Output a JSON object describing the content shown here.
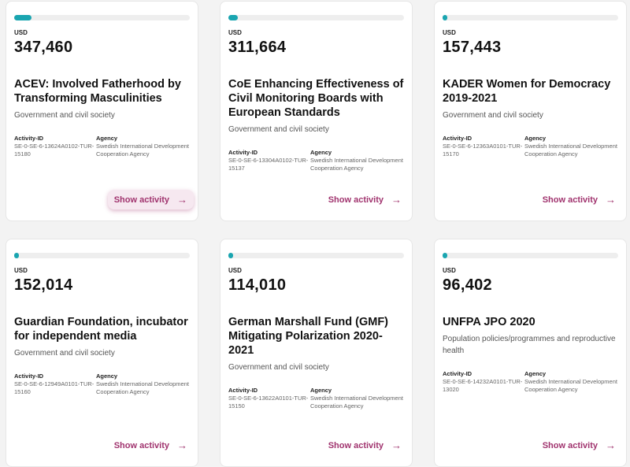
{
  "labels": {
    "currency": "USD",
    "activity_id": "Activity-ID",
    "agency": "Agency",
    "show": "Show activity"
  },
  "colors": {
    "accent": "#1aa5b0",
    "link": "#a0336e"
  },
  "cards": [
    {
      "progress": 0.1,
      "amount": "347,460",
      "title": "ACEV: Involved Fatherhood by Transforming Masculinities",
      "sector": "Government and civil society",
      "activity_id": "SE-0-SE-6-13624A0102-TUR-15180",
      "agency": "Swedish International Development Cooperation Agency"
    },
    {
      "progress": 0.055,
      "amount": "311,664",
      "title": "CoE Enhancing Effectiveness of Civil Monitoring Boards with European Standards",
      "sector": "Government and civil society",
      "activity_id": "SE-0-SE-6-13304A0102-TUR-15137",
      "agency": "Swedish International Development Cooperation Agency"
    },
    {
      "progress": 0.025,
      "amount": "157,443",
      "title": "KADER Women for Democracy 2019-2021",
      "sector": "Government and civil society",
      "activity_id": "SE-0-SE-6-12363A0101-TUR-15170",
      "agency": "Swedish International Development Cooperation Agency"
    },
    {
      "progress": 0.025,
      "amount": "152,014",
      "title": "Guardian Foundation, incubator for independent media",
      "sector": "Government and civil society",
      "activity_id": "SE-0-SE-6-12949A0101-TUR-15160",
      "agency": "Swedish International Development Cooperation Agency"
    },
    {
      "progress": 0.02,
      "amount": "114,010",
      "title": "German Marshall Fund (GMF) Mitigating Polarization 2020-2021",
      "sector": "Government and civil society",
      "activity_id": "SE-0-SE-6-13622A0101-TUR-15150",
      "agency": "Swedish International Development Cooperation Agency"
    },
    {
      "progress": 0.015,
      "amount": "96,402",
      "title": "UNFPA JPO 2020",
      "sector": "Population policies/programmes and reproductive health",
      "activity_id": "SE-0-SE-6-14232A0101-TUR-13020",
      "agency": "Swedish International Development Cooperation Agency"
    }
  ]
}
